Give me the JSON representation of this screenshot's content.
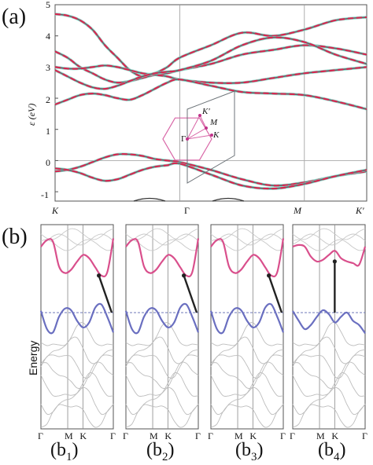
{
  "figure": {
    "panel_a_label": "(a)",
    "panel_b_label": "(b)",
    "a_ylabel": "ε (eV)",
    "a_yticks": [
      "5",
      "4",
      "3",
      "2",
      "1",
      "0",
      "-1"
    ],
    "a_xticks": [
      "K",
      "Γ",
      "M",
      "K′"
    ],
    "bz_labels": {
      "gamma": "Γ",
      "m": "M",
      "k": "K",
      "kprime": "K′"
    },
    "b_ylabel": "Energy",
    "b_xticks": [
      "Γ",
      "M",
      "K",
      "Γ"
    ],
    "subpanels": [
      {
        "pre": "(b",
        "sub": "1",
        "post": ")"
      },
      {
        "pre": "(b",
        "sub": "2",
        "post": ")"
      },
      {
        "pre": "(b",
        "sub": "3",
        "post": ")"
      },
      {
        "pre": "(b",
        "sub": "4",
        "post": ")"
      }
    ]
  },
  "chart_data": [
    {
      "type": "line",
      "ylabel": "ε (eV)",
      "ylim": [
        -1.3,
        5
      ],
      "xticks": [
        "K",
        "Γ",
        "M",
        "K′"
      ],
      "x": [
        0,
        0.1,
        0.2,
        0.3,
        0.4,
        0.5,
        0.6,
        0.7,
        0.8,
        0.9,
        1.0,
        1.25,
        1.5,
        1.75,
        2.0,
        2.25,
        2.5
      ],
      "series": [
        {
          "values": [
            4.7,
            4.65,
            4.5,
            4.2,
            3.7,
            3.3,
            2.9,
            2.7,
            2.8,
            3.0,
            3.3,
            3.7,
            4.1,
            4.0,
            4.2,
            4.5,
            4.6
          ]
        },
        {
          "values": [
            3.5,
            3.3,
            3.0,
            2.8,
            2.6,
            2.5,
            2.55,
            2.65,
            2.75,
            2.8,
            2.9,
            3.1,
            3.4,
            3.55,
            3.7,
            3.6,
            3.4
          ]
        },
        {
          "values": [
            3.0,
            2.95,
            2.95,
            3.0,
            3.05,
            3.0,
            2.9,
            2.8,
            2.75,
            2.7,
            2.6,
            2.5,
            2.5,
            2.65,
            2.8,
            2.9,
            3.0
          ]
        },
        {
          "values": [
            2.9,
            2.7,
            2.5,
            2.35,
            2.3,
            2.4,
            2.55,
            2.7,
            2.8,
            2.85,
            2.9,
            3.2,
            3.7,
            3.95,
            3.8,
            3.4,
            3.1
          ]
        },
        {
          "values": [
            1.8,
            1.95,
            2.1,
            2.15,
            2.1,
            2.0,
            1.95,
            2.1,
            2.3,
            2.5,
            2.6,
            2.4,
            2.2,
            2.15,
            2.1,
            1.9,
            1.65
          ]
        },
        {
          "values": [
            -0.35,
            -0.3,
            -0.2,
            -0.05,
            0.1,
            0.2,
            0.2,
            0.15,
            0.05,
            0.0,
            -0.05,
            -0.3,
            -0.6,
            -0.8,
            -0.7,
            -0.5,
            -0.35
          ]
        },
        {
          "values": [
            -0.25,
            -0.3,
            -0.4,
            -0.55,
            -0.65,
            -0.6,
            -0.45,
            -0.3,
            -0.2,
            -0.15,
            -0.1,
            -0.45,
            -0.8,
            -0.9,
            -0.75,
            -0.5,
            -0.3
          ]
        }
      ]
    },
    {
      "type": "line",
      "ylabel": "Energy",
      "xticks": [
        "Γ",
        "M",
        "K",
        "Γ"
      ],
      "panels": [
        {
          "conduction": [
            0.8,
            0.88,
            0.86,
            0.56,
            0.48,
            0.52,
            0.62,
            0.7,
            0.66,
            0.55,
            0.45,
            0.49,
            0.9
          ],
          "valence": [
            0.02,
            -0.2,
            -0.24,
            -0.05,
            0.05,
            0.03,
            -0.1,
            -0.18,
            -0.12,
            0.06,
            0.1,
            -0.05,
            -0.24
          ],
          "arrow_from": 0.45,
          "arrow_to": 0.0
        },
        {
          "conduction": [
            0.8,
            0.88,
            0.86,
            0.56,
            0.48,
            0.52,
            0.62,
            0.7,
            0.66,
            0.55,
            0.45,
            0.49,
            0.9
          ],
          "valence": [
            0.02,
            -0.2,
            -0.24,
            -0.05,
            0.05,
            0.03,
            -0.1,
            -0.18,
            -0.12,
            0.06,
            0.1,
            -0.05,
            -0.24
          ],
          "arrow_from": 0.45,
          "arrow_to": 0.0
        },
        {
          "conduction": [
            0.8,
            0.88,
            0.86,
            0.56,
            0.48,
            0.52,
            0.62,
            0.7,
            0.66,
            0.55,
            0.45,
            0.49,
            0.9
          ],
          "valence": [
            0.02,
            -0.2,
            -0.24,
            -0.05,
            0.05,
            0.03,
            -0.1,
            -0.18,
            -0.12,
            0.06,
            0.1,
            -0.05,
            -0.24
          ],
          "arrow_from": 0.45,
          "arrow_to": 0.0
        },
        {
          "conduction": [
            0.8,
            0.82,
            0.8,
            0.68,
            0.62,
            0.64,
            0.7,
            0.75,
            0.66,
            0.62,
            0.6,
            0.58,
            0.8
          ],
          "valence": [
            0.02,
            -0.1,
            -0.2,
            -0.15,
            -0.05,
            0.03,
            -0.02,
            -0.12,
            -0.05,
            0.0,
            -0.1,
            -0.15,
            -0.25
          ],
          "arrow_from": 0.62,
          "arrow_to": 0.0
        }
      ]
    }
  ]
}
